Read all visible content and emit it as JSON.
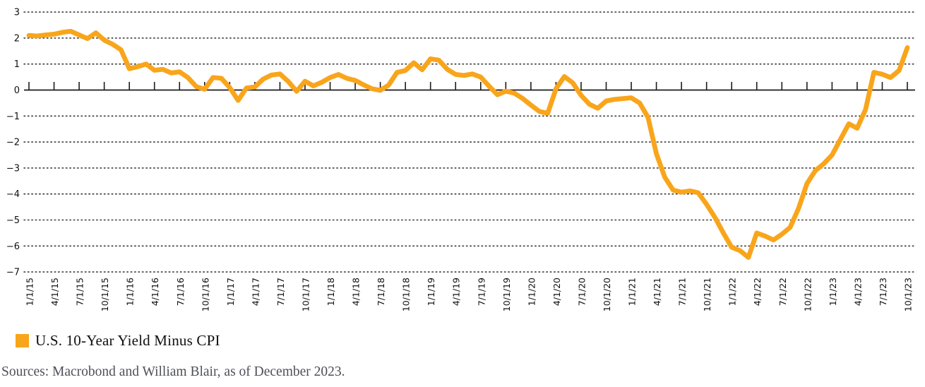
{
  "chart_data": {
    "type": "line",
    "title": "",
    "xlabel": "",
    "ylabel": "",
    "ylim": [
      -7,
      3
    ],
    "y_tick_labels": [
      "3",
      "2",
      "1",
      "0",
      "−1",
      "−2",
      "−3",
      "−4",
      "−5",
      "−6",
      "−7"
    ],
    "y_tick_values": [
      3,
      2,
      1,
      0,
      -1,
      -2,
      -3,
      -4,
      -5,
      -6,
      -7
    ],
    "grid": "dotted-horizontal",
    "zero_axis": "solid-with-quarterly-ticks",
    "legend_position": "bottom-left",
    "x_frequency": "monthly",
    "x_start": "1/1/15",
    "x_end": "10/1/23",
    "x_tick_labels": [
      "1/1/15",
      "4/1/15",
      "7/1/15",
      "10/1/15",
      "1/1/16",
      "4/1/16",
      "7/1/16",
      "10/1/16",
      "1/1/17",
      "4/1/17",
      "7/1/17",
      "10/1/17",
      "1/1/18",
      "4/1/18",
      "7/1/18",
      "10/1/18",
      "1/1/19",
      "4/1/19",
      "7/1/19",
      "10/1/19",
      "1/1/20",
      "4/1/20",
      "7/1/20",
      "10/1/20",
      "1/1/21",
      "4/1/21",
      "7/1/21",
      "10/1/21",
      "1/1/22",
      "4/1/22",
      "7/1/22",
      "10/1/22",
      "1/1/23",
      "4/1/23",
      "7/1/23",
      "10/1/23"
    ],
    "series": [
      {
        "name": "U.S. 10-Year Yield Minus CPI",
        "color": "#F9A51B",
        "values": [
          2.1,
          2.08,
          2.12,
          2.15,
          2.22,
          2.26,
          2.12,
          1.98,
          2.2,
          1.92,
          1.76,
          1.55,
          0.82,
          0.9,
          1.0,
          0.76,
          0.8,
          0.66,
          0.7,
          0.48,
          0.13,
          0.03,
          0.48,
          0.45,
          0.1,
          -0.4,
          0.08,
          0.12,
          0.42,
          0.58,
          0.62,
          0.33,
          -0.05,
          0.34,
          0.16,
          0.3,
          0.48,
          0.6,
          0.45,
          0.37,
          0.2,
          0.05,
          -0.01,
          0.19,
          0.68,
          0.75,
          1.05,
          0.78,
          1.2,
          1.15,
          0.8,
          0.6,
          0.56,
          0.62,
          0.5,
          0.15,
          -0.18,
          -0.04,
          -0.12,
          -0.32,
          -0.58,
          -0.82,
          -0.9,
          0.05,
          0.52,
          0.28,
          -0.2,
          -0.55,
          -0.7,
          -0.42,
          -0.36,
          -0.33,
          -0.3,
          -0.5,
          -1.05,
          -2.45,
          -3.35,
          -3.85,
          -3.93,
          -3.88,
          -3.95,
          -4.4,
          -4.9,
          -5.5,
          -6.05,
          -6.18,
          -6.44,
          -5.5,
          -5.62,
          -5.77,
          -5.55,
          -5.28,
          -4.55,
          -3.6,
          -3.1,
          -2.84,
          -2.5,
          -1.9,
          -1.3,
          -1.47,
          -0.75,
          0.68,
          0.61,
          0.48,
          0.75,
          1.63
        ]
      }
    ]
  },
  "legend": {
    "label": "U.S. 10-Year Yield Minus CPI",
    "swatch_color": "#F9A51B"
  },
  "source_note": "Sources: Macrobond and William Blair, as of December 2023.",
  "colors": {
    "line": "#F9A51B",
    "grid": "#1b1b1b",
    "axis_text": "#111111",
    "source_text": "#4e5058",
    "background": "#ffffff"
  }
}
